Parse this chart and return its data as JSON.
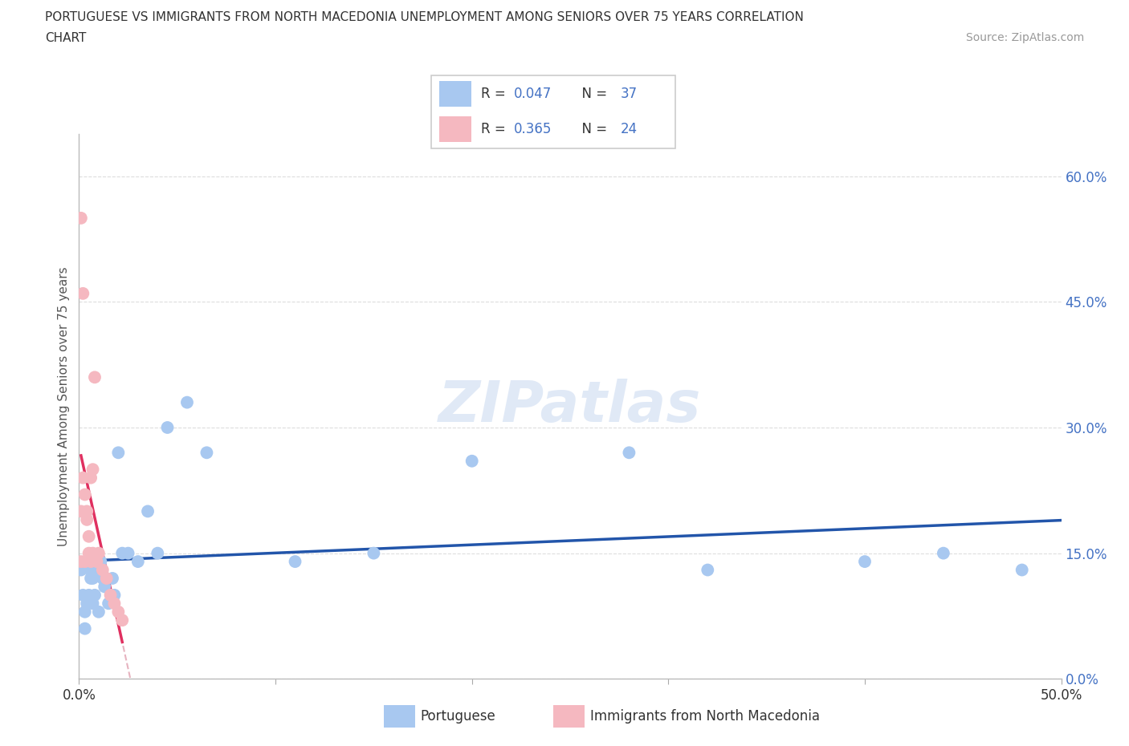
{
  "title_line1": "PORTUGUESE VS IMMIGRANTS FROM NORTH MACEDONIA UNEMPLOYMENT AMONG SENIORS OVER 75 YEARS CORRELATION",
  "title_line2": "CHART",
  "source": "Source: ZipAtlas.com",
  "ylabel": "Unemployment Among Seniors over 75 years",
  "xlim": [
    0.0,
    0.5
  ],
  "ylim": [
    0.0,
    0.65
  ],
  "yticks_right": [
    0.0,
    0.15,
    0.3,
    0.45,
    0.6
  ],
  "ytick_labels_right": [
    "0.0%",
    "15.0%",
    "30.0%",
    "45.0%",
    "60.0%"
  ],
  "r_portuguese": 0.047,
  "n_portuguese": 37,
  "r_macedonia": 0.365,
  "n_macedonia": 24,
  "blue_color": "#A8C8F0",
  "pink_color": "#F5B8C0",
  "blue_line_color": "#2255AA",
  "pink_line_color": "#E03060",
  "dashed_line_color": "#E0A0B0",
  "watermark": "ZIPatlas",
  "legend_r_color": "#4472C4",
  "portuguese_x": [
    0.001,
    0.002,
    0.003,
    0.003,
    0.004,
    0.005,
    0.005,
    0.006,
    0.006,
    0.007,
    0.007,
    0.008,
    0.009,
    0.01,
    0.011,
    0.012,
    0.013,
    0.015,
    0.017,
    0.018,
    0.02,
    0.022,
    0.025,
    0.03,
    0.035,
    0.04,
    0.045,
    0.055,
    0.065,
    0.11,
    0.15,
    0.2,
    0.28,
    0.32,
    0.4,
    0.44,
    0.48
  ],
  "portuguese_y": [
    0.13,
    0.1,
    0.08,
    0.06,
    0.09,
    0.1,
    0.14,
    0.12,
    0.13,
    0.09,
    0.12,
    0.1,
    0.13,
    0.08,
    0.14,
    0.12,
    0.11,
    0.09,
    0.12,
    0.1,
    0.27,
    0.15,
    0.15,
    0.14,
    0.2,
    0.15,
    0.3,
    0.33,
    0.27,
    0.14,
    0.15,
    0.26,
    0.27,
    0.13,
    0.14,
    0.15,
    0.13
  ],
  "macedonia_x": [
    0.001,
    0.001,
    0.001,
    0.002,
    0.002,
    0.003,
    0.003,
    0.004,
    0.004,
    0.005,
    0.005,
    0.006,
    0.006,
    0.007,
    0.007,
    0.008,
    0.009,
    0.01,
    0.012,
    0.014,
    0.016,
    0.018,
    0.02,
    0.022
  ],
  "macedonia_y": [
    0.55,
    0.2,
    0.14,
    0.46,
    0.24,
    0.22,
    0.14,
    0.2,
    0.19,
    0.17,
    0.15,
    0.14,
    0.24,
    0.15,
    0.25,
    0.36,
    0.14,
    0.15,
    0.13,
    0.12,
    0.1,
    0.09,
    0.08,
    0.07
  ]
}
